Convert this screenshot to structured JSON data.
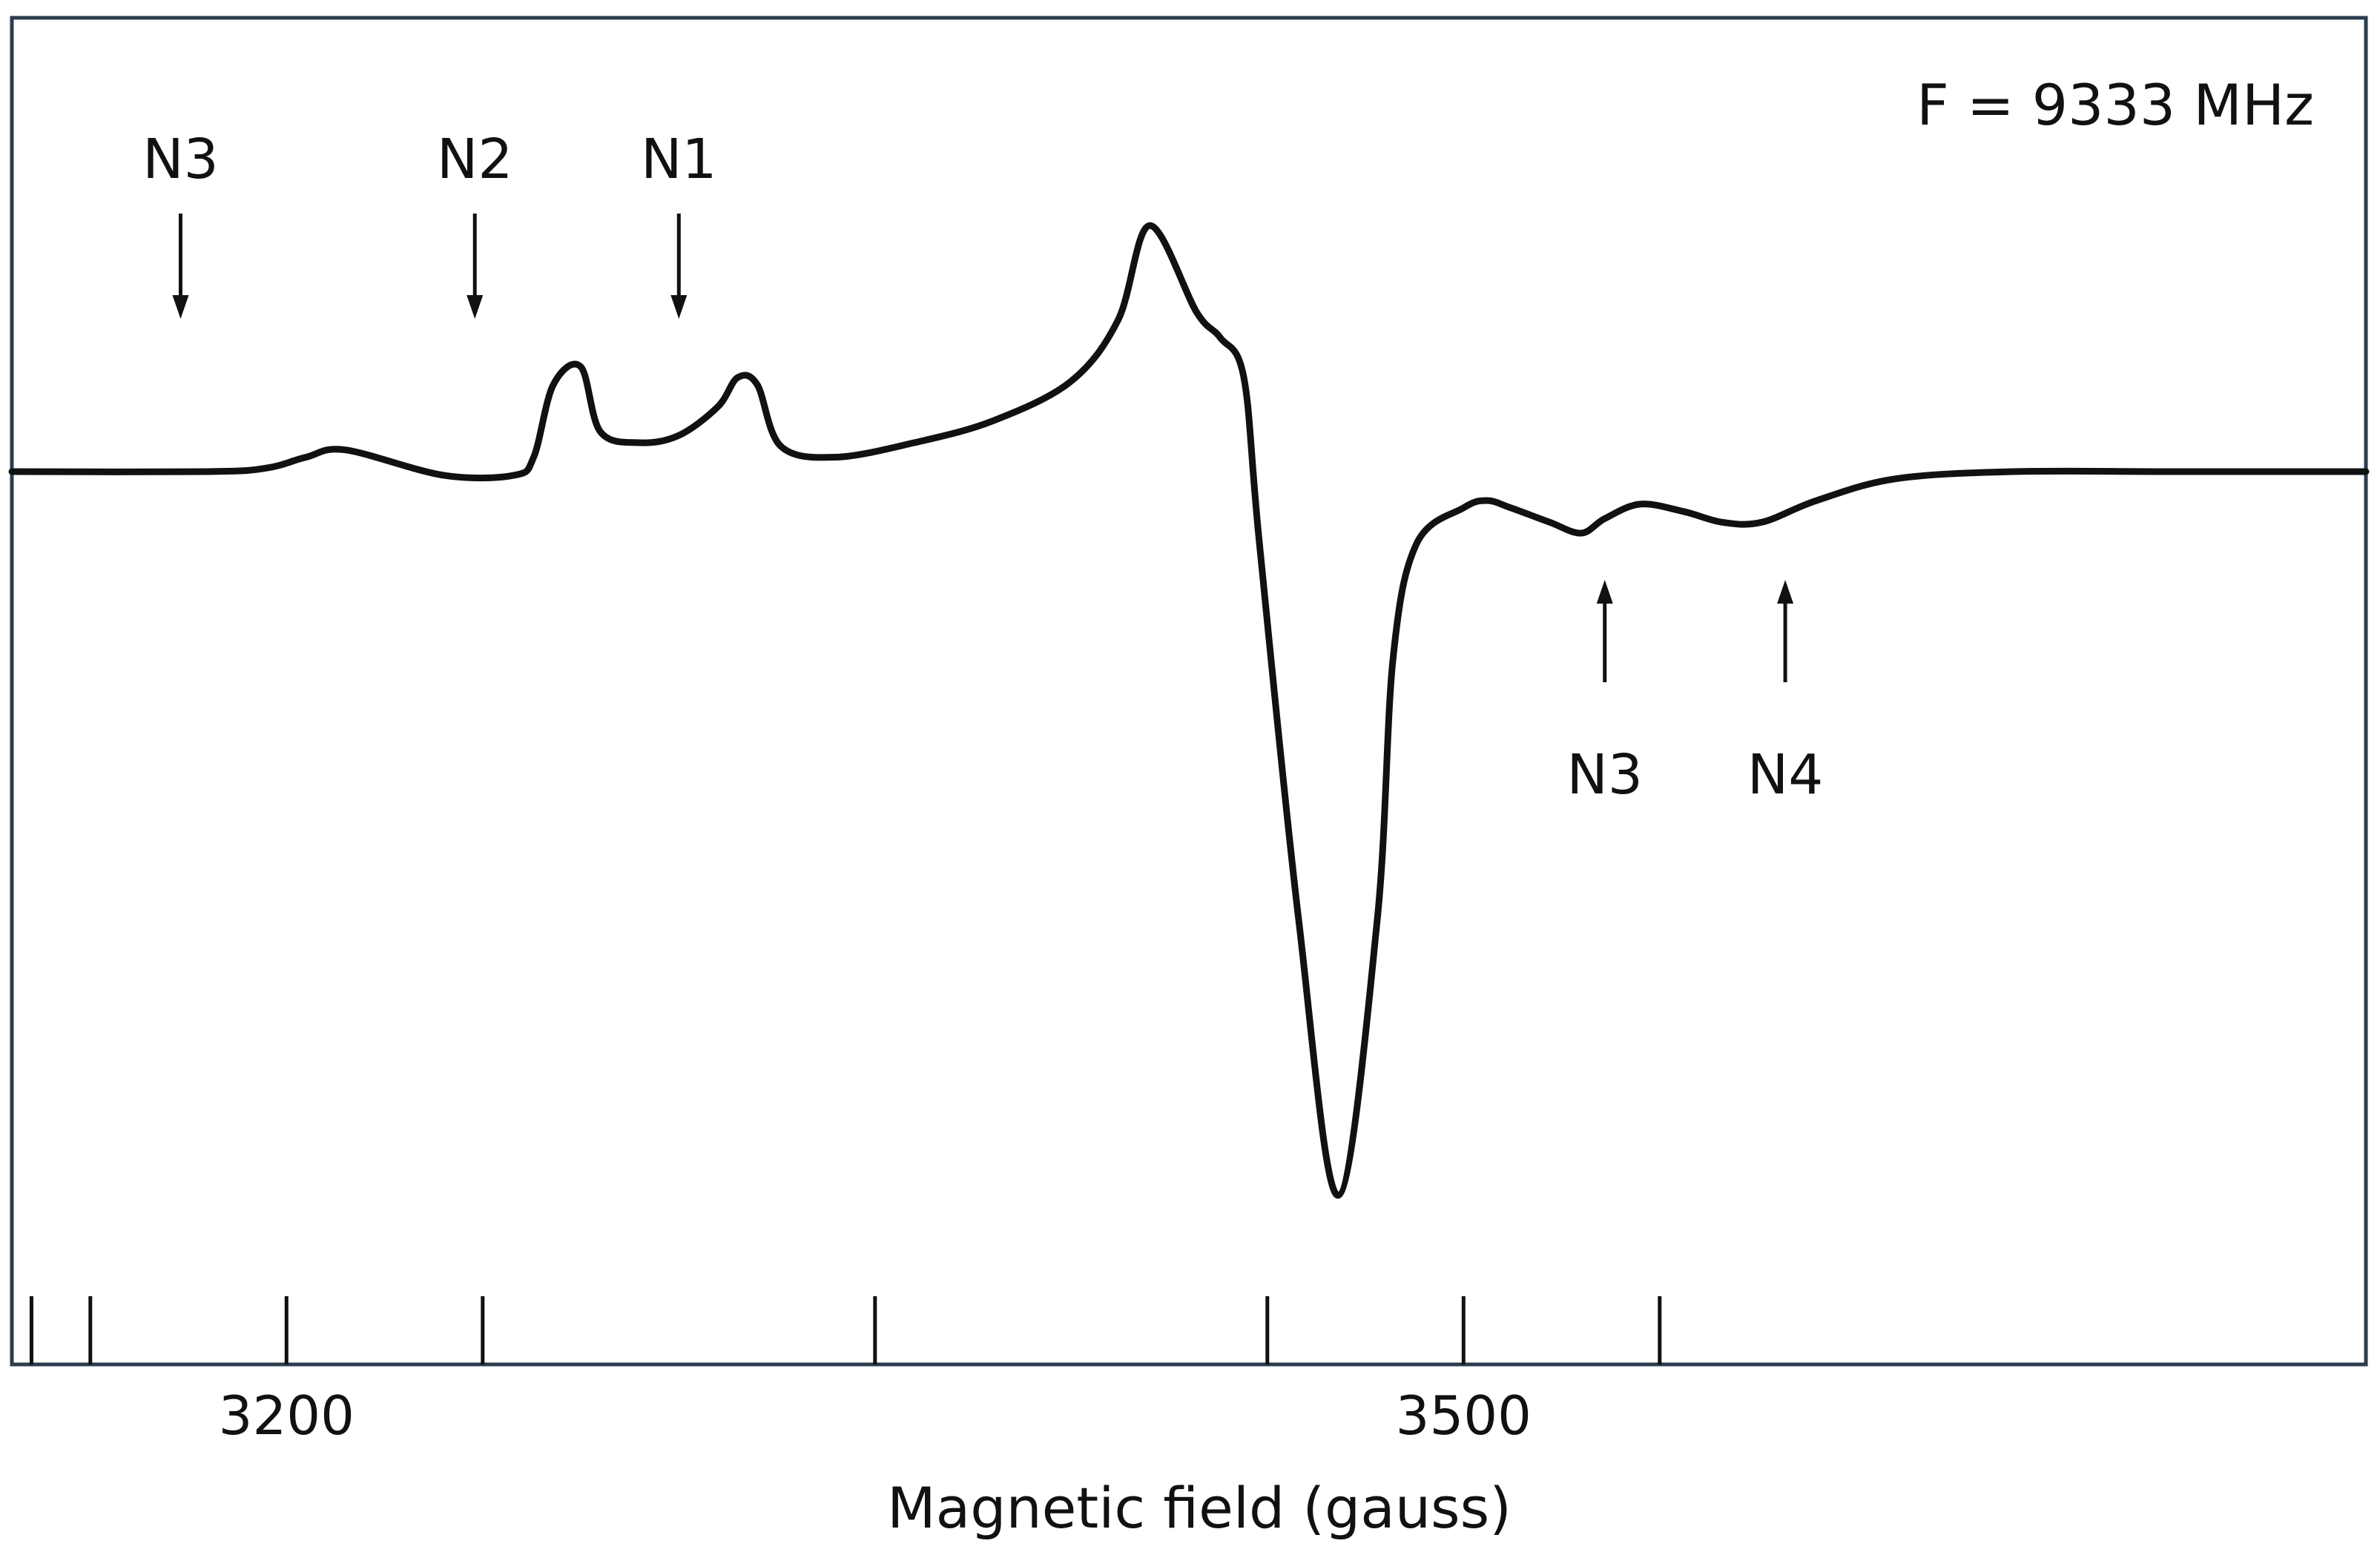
{
  "chart_data": {
    "type": "line",
    "title": "",
    "annotation": "F = 9333 MHz",
    "xlabel": "Magnetic field (gauss)",
    "ylabel": "",
    "xlim": [
      3130,
      3730
    ],
    "ylim": [
      -1.0,
      0.35
    ],
    "x_ticks": [
      3150,
      3250,
      3350,
      3450,
      3550
    ],
    "x_tick_labels": [
      {
        "x": 3200,
        "label": "3200"
      },
      {
        "x": 3500,
        "label": "3500"
      }
    ],
    "grid": false,
    "legend": "none",
    "line_color": "#111111",
    "series": [
      {
        "x": [
          3130,
          3180,
          3195,
          3205,
          3215,
          3240,
          3258,
          3263,
          3268,
          3275,
          3280,
          3290,
          3300,
          3310,
          3315,
          3320,
          3326,
          3340,
          3360,
          3380,
          3400,
          3412,
          3420,
          3432,
          3438,
          3444,
          3448,
          3458,
          3468,
          3478,
          3482,
          3488,
          3500,
          3506,
          3512,
          3522,
          3530,
          3536,
          3545,
          3556,
          3566,
          3576,
          3590,
          3610,
          3640,
          3680,
          3730
        ],
        "y": [
          0,
          0,
          0.005,
          0.02,
          0.03,
          -0.005,
          -0.005,
          0.02,
          0.12,
          0.145,
          0.055,
          0.04,
          0.05,
          0.09,
          0.13,
          0.12,
          0.035,
          0.02,
          0.04,
          0.07,
          0.125,
          0.21,
          0.34,
          0.22,
          0.185,
          0.13,
          -0.1,
          -0.62,
          -1.0,
          -0.62,
          -0.26,
          -0.1,
          -0.05,
          -0.04,
          -0.05,
          -0.07,
          -0.085,
          -0.065,
          -0.045,
          -0.055,
          -0.07,
          -0.07,
          -0.04,
          -0.01,
          0,
          0,
          0
        ]
      }
    ],
    "peak_markers": [
      {
        "label": "N3",
        "x": 3173,
        "direction": "down"
      },
      {
        "label": "N2",
        "x": 3248,
        "direction": "down"
      },
      {
        "label": "N1",
        "x": 3300,
        "direction": "down"
      },
      {
        "label": "N3",
        "x": 3536,
        "direction": "up"
      },
      {
        "label": "N4",
        "x": 3582,
        "direction": "up"
      }
    ]
  }
}
